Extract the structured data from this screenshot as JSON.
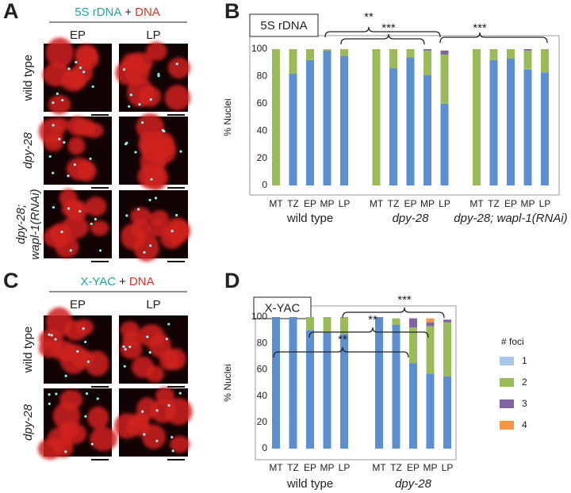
{
  "panel_a": {
    "letter": "A",
    "probe": "5S rDNA",
    "plus": "+",
    "stain": "DNA",
    "columns": [
      "EP",
      "LP"
    ],
    "rows": [
      [
        "wild type"
      ],
      [
        "dpy-28"
      ],
      [
        "dpy-28;",
        "wapl-1(RNAi)"
      ]
    ]
  },
  "panel_c": {
    "letter": "C",
    "probe": "X-YAC",
    "plus": "+",
    "stain": "DNA",
    "columns": [
      "EP",
      "LP"
    ],
    "rows": [
      [
        "wild type"
      ],
      [
        "dpy-28"
      ]
    ]
  },
  "chart_data": [
    {
      "type": "bar",
      "stacked": true,
      "letter": "B",
      "title": "5S rDNA",
      "y_label": "% Nuclei",
      "categories": [
        "MT",
        "TZ",
        "EP",
        "MP",
        "LP",
        "MT",
        "TZ",
        "EP",
        "MP",
        "LP",
        "MT",
        "TZ",
        "EP",
        "MP",
        "LP"
      ],
      "groups": [
        "wild type",
        "dpy-28",
        "dpy-28; wapl-1(RNAi)"
      ],
      "ylim": [
        0,
        100
      ],
      "yticks": [
        0,
        20,
        40,
        60,
        80,
        100
      ],
      "series": [
        {
          "color": "#5b8fd0",
          "values": [
            0,
            82,
            92,
            99,
            95,
            0,
            86,
            94,
            81,
            60,
            0,
            92,
            93,
            85,
            83
          ]
        },
        {
          "color": "#9bbb59",
          "values": [
            100,
            18,
            8,
            1,
            5,
            100,
            14,
            6,
            18,
            36,
            100,
            8,
            7,
            14,
            17
          ]
        },
        {
          "color": "#8064a2",
          "values": [
            0,
            0,
            0,
            0,
            0,
            0,
            0,
            0,
            1,
            3,
            0,
            0,
            0,
            1,
            0
          ]
        },
        {
          "color": "#f79646",
          "values": [
            0,
            0,
            0,
            0,
            0,
            0,
            0,
            0,
            0,
            0,
            0,
            0,
            0,
            0,
            0
          ]
        }
      ],
      "annotations": [
        "**",
        "***",
        "***"
      ]
    },
    {
      "type": "bar",
      "stacked": true,
      "letter": "D",
      "title": "X-YAC",
      "y_label": "% Nuclei",
      "categories": [
        "MT",
        "TZ",
        "EP",
        "MP",
        "LP",
        "MT",
        "TZ",
        "EP",
        "MP",
        "LP"
      ],
      "groups": [
        "wild type",
        "dpy-28"
      ],
      "ylim": [
        0,
        100
      ],
      "yticks": [
        0,
        20,
        40,
        60,
        80,
        100
      ],
      "legend_title": "# foci",
      "legend": "right",
      "series": [
        {
          "name": "1",
          "color": "#5b8fd0",
          "values": [
            100,
            100,
            90,
            88,
            87,
            100,
            94,
            65,
            57,
            55
          ]
        },
        {
          "name": "2",
          "color": "#9bbb59",
          "values": [
            0,
            0,
            10,
            12,
            13,
            0,
            5,
            27,
            36,
            41
          ]
        },
        {
          "name": "3",
          "color": "#8064a2",
          "values": [
            0,
            0,
            0,
            0,
            0,
            0,
            0,
            7,
            3,
            2
          ]
        },
        {
          "name": "4",
          "color": "#f79646",
          "values": [
            0,
            0,
            0,
            0,
            0,
            0,
            0,
            0,
            3,
            0
          ]
        }
      ],
      "annotations": [
        "***",
        "**",
        "**"
      ]
    }
  ]
}
